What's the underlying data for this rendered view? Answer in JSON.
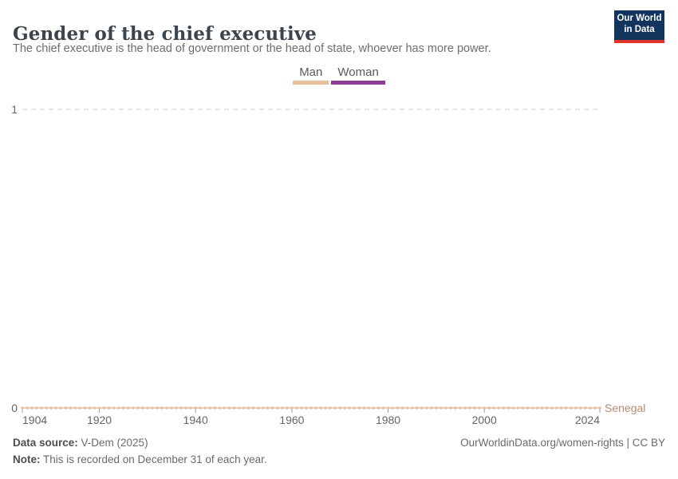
{
  "header": {
    "title": "Gender of the chief executive",
    "subtitle": "The chief executive is the head of government or the head of state, whoever has more power."
  },
  "logo": {
    "line1": "Our World",
    "line2": "in Data",
    "bg_color": "#12355e",
    "accent_color": "#dc352c"
  },
  "legend": {
    "items": [
      {
        "label": "Man",
        "color": "#e7bf9e"
      },
      {
        "label": "Woman",
        "color": "#8b3d8f"
      }
    ]
  },
  "footer": {
    "source_label": "Data source:",
    "source_value": " V-Dem (2025)",
    "note_label": "Note:",
    "note_value": " This is recorded on December 31 of each year.",
    "link": "OurWorldinData.org/women-rights | CC BY"
  },
  "chart_data": {
    "type": "line",
    "title": "Gender of the chief executive",
    "xlabel": "",
    "ylabel": "",
    "xlim": [
      1904,
      2024
    ],
    "ylim": [
      0,
      1
    ],
    "x_ticks": [
      1904,
      1920,
      1940,
      1960,
      1980,
      2000,
      2024
    ],
    "y_ticks": [
      0,
      1
    ],
    "grid": "dashed horizontal gridline at y=1 only",
    "legend_position": "top-center",
    "marker": "circle at every year",
    "series": [
      {
        "name": "Senegal",
        "category": "Man",
        "color": "#e7bf9e",
        "label_color": "#b98a70",
        "x_start": 1904,
        "x_end": 2024,
        "x_step": 1,
        "constant_value": 0
      }
    ],
    "axis_color": "#666666",
    "gridline_color": "#cecece",
    "tick_color": "#9e9e9e"
  }
}
